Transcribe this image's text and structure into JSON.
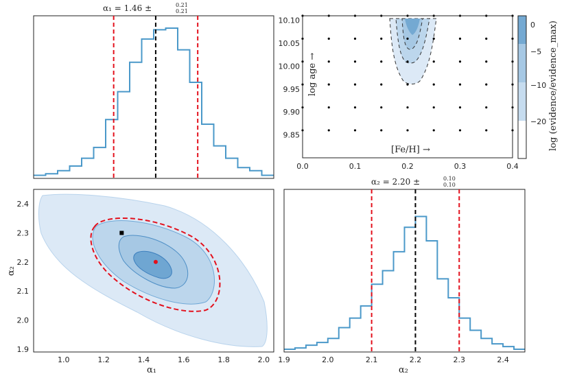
{
  "chart_data": [
    {
      "id": "alpha1_hist",
      "type": "histogram",
      "title_main": "α₁ = 1.46 ±",
      "title_plus": "0.21",
      "title_minus": "0.21",
      "xlim": [
        0.85,
        2.05
      ],
      "bin_edges": [
        0.85,
        0.91,
        0.97,
        1.03,
        1.09,
        1.15,
        1.21,
        1.27,
        1.33,
        1.39,
        1.45,
        1.51,
        1.57,
        1.63,
        1.69,
        1.75,
        1.81,
        1.87,
        1.93,
        1.99,
        2.05
      ],
      "counts": [
        0.02,
        0.03,
        0.05,
        0.08,
        0.13,
        0.2,
        0.38,
        0.56,
        0.75,
        0.9,
        0.96,
        0.97,
        0.83,
        0.62,
        0.35,
        0.21,
        0.13,
        0.07,
        0.05,
        0.02
      ],
      "ymax": 1.05,
      "median": 1.46,
      "lower": 1.25,
      "upper": 1.67
    },
    {
      "id": "feh_age_contour",
      "type": "contour",
      "xlabel": "[Fe/H] →",
      "ylabel": "log age →",
      "xlim": [
        0.0,
        0.4
      ],
      "ylim": [
        9.8,
        10.11
      ],
      "xticks": [
        "0.0",
        "0.1",
        "0.2",
        "0.3",
        "0.4"
      ],
      "yticks": [
        "9.85",
        "9.90",
        "9.95",
        "10.00",
        "10.05",
        "10.10"
      ],
      "grid_x": [
        0.0,
        0.05,
        0.1,
        0.15,
        0.2,
        0.25,
        0.3,
        0.35,
        0.4
      ],
      "grid_y": [
        9.86,
        9.91,
        9.96,
        10.01,
        10.06,
        10.11
      ],
      "colorbar_label": "log (evidence/evidence_max)",
      "colorbar_ticks": [
        "0",
        "−5",
        "−10",
        "−20"
      ]
    },
    {
      "id": "joint_alpha",
      "type": "contour",
      "xlabel": "α₁",
      "ylabel": "α₂",
      "xlim": [
        0.85,
        2.05
      ],
      "ylim": [
        1.89,
        2.45
      ],
      "xticks": [
        "1.0",
        "1.2",
        "1.4",
        "1.6",
        "1.8",
        "2.0"
      ],
      "yticks": [
        "1.9",
        "2.0",
        "2.1",
        "2.2",
        "2.3",
        "2.4"
      ],
      "best_fit": {
        "x": 1.46,
        "y": 2.2
      },
      "reference": {
        "x": 1.29,
        "y": 2.3
      }
    },
    {
      "id": "alpha2_hist",
      "type": "histogram",
      "title_main": "α₂ = 2.20 ±",
      "title_plus": "0.10",
      "title_minus": "0.10",
      "xlabel": "α₂",
      "xlim": [
        1.9,
        2.45
      ],
      "xticks": [
        "1.9",
        "2.0",
        "2.1",
        "2.2",
        "2.3",
        "2.4"
      ],
      "bin_edges": [
        1.9,
        1.925,
        1.95,
        1.975,
        2.0,
        2.025,
        2.05,
        2.075,
        2.1,
        2.125,
        2.15,
        2.175,
        2.2,
        2.225,
        2.25,
        2.275,
        2.3,
        2.325,
        2.35,
        2.375,
        2.4,
        2.425,
        2.45
      ],
      "counts": [
        0.02,
        0.03,
        0.05,
        0.07,
        0.1,
        0.18,
        0.25,
        0.34,
        0.5,
        0.6,
        0.74,
        0.92,
        1.0,
        0.82,
        0.54,
        0.4,
        0.25,
        0.16,
        0.1,
        0.06,
        0.04,
        0.02
      ],
      "ymax": 1.2,
      "median": 2.2,
      "lower": 2.1,
      "upper": 2.3
    }
  ]
}
